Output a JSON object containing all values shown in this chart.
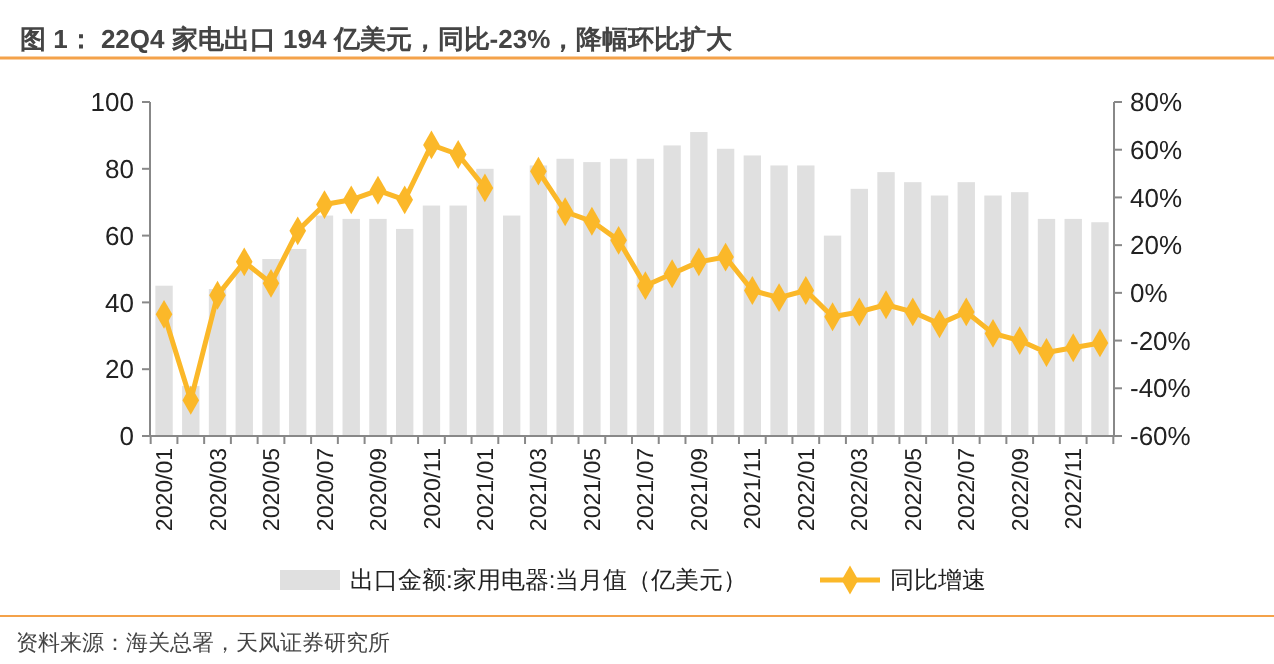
{
  "chart_data": {
    "type": "bar",
    "title": "图 1：  22Q4 家电出口 194 亿美元，同比-23%，降幅环比扩大",
    "annotations": [
      "资料来源：海关总署，天风证券研究所"
    ],
    "categories": [
      "2020/01",
      null,
      "2020/03",
      null,
      "2020/05",
      null,
      "2020/07",
      null,
      "2020/09",
      null,
      "2020/11",
      null,
      "2021/01",
      null,
      "2021/03",
      null,
      "2021/05",
      null,
      "2021/07",
      null,
      "2021/09",
      null,
      "2021/11",
      null,
      "2022/01",
      null,
      "2022/03",
      null,
      "2022/05",
      null,
      "2022/07",
      null,
      "2022/09",
      null,
      "2022/11",
      null
    ],
    "series": [
      {
        "name": "出口金额:家用电器:当月值（亿美元）",
        "color": "#e0e0e0",
        "values": [
          45,
          15,
          44,
          50,
          53,
          56,
          66,
          65,
          65,
          62,
          69,
          69,
          80,
          66,
          81,
          83,
          82,
          83,
          83,
          87,
          91,
          86,
          84,
          81,
          81,
          60,
          74,
          79,
          76,
          72,
          76,
          72,
          73,
          65,
          65,
          64
        ]
      },
      {
        "name": "同比增速",
        "type": "line",
        "axis": "y2",
        "color": "#fbb829",
        "values": [
          -9,
          -45,
          -1,
          13,
          4,
          26,
          37,
          39,
          43,
          39,
          62,
          58,
          44,
          null,
          51,
          34,
          30,
          22,
          3,
          8,
          13,
          15,
          1,
          -2,
          1,
          -10,
          -8,
          -5,
          -8,
          -13,
          -8,
          -17,
          -20,
          -25,
          -23,
          -21
        ]
      }
    ],
    "ylim": [
      0,
      100
    ],
    "yticks": [
      0,
      20,
      40,
      60,
      80,
      100
    ],
    "y2lim": [
      -60,
      80
    ],
    "y2ticks": [
      {
        "value": -60,
        "label": "-60%"
      },
      {
        "value": -40,
        "label": "-40%"
      },
      {
        "value": -20,
        "label": "-20%"
      },
      {
        "value": 0,
        "label": "0%"
      },
      {
        "value": 20,
        "label": "20%"
      },
      {
        "value": 40,
        "label": "40%"
      },
      {
        "value": 60,
        "label": "60%"
      },
      {
        "value": 80,
        "label": "80%"
      }
    ],
    "marker": "diamond",
    "legend": "bottom",
    "grid": false
  }
}
